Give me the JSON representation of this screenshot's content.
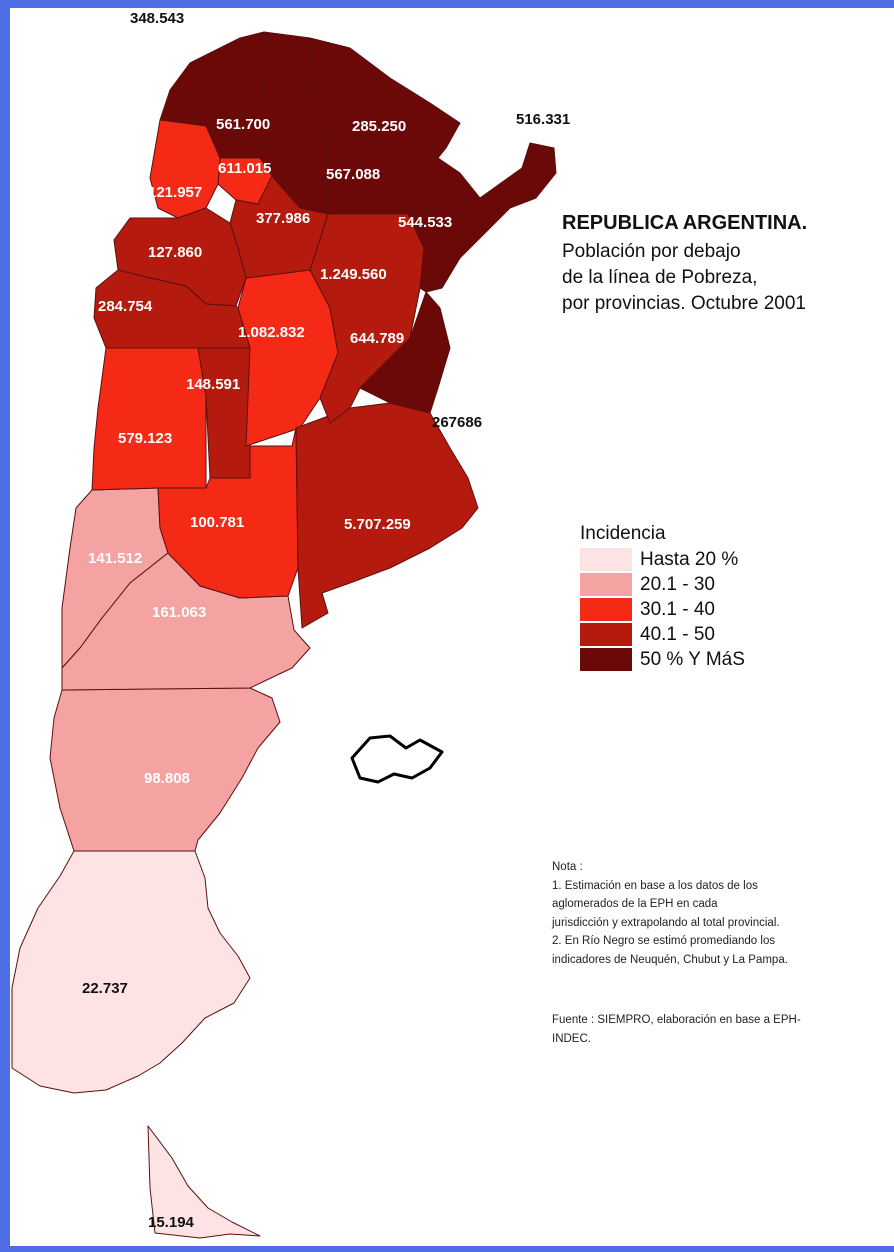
{
  "title": "REPUBLICA ARGENTINA.",
  "subtitle_lines": [
    "Población por debajo",
    "de la línea de Pobreza,",
    "por provincias. Octubre 2001"
  ],
  "legend": {
    "title": "Incidencia",
    "items": [
      {
        "label": "Hasta 20 %",
        "color": "#fde3e3"
      },
      {
        "label": "20.1 - 30",
        "color": "#f4a2a2"
      },
      {
        "label": "30.1 - 40",
        "color": "#f52a16"
      },
      {
        "label": "40.1 - 50",
        "color": "#b51a0e"
      },
      {
        "label": "50 % Y MáS",
        "color": "#6b0808"
      }
    ]
  },
  "labels": [
    "348.543",
    "561.700",
    "285.250",
    "516.331",
    "611.015",
    "567.088",
    "121.957",
    "377.986",
    "544.533",
    "127.860",
    "1.249.560",
    "284.754",
    "1.082.832",
    "644.789",
    "148.591",
    "267686",
    "579.123",
    "100.781",
    "5.707.259",
    "141.512",
    "161.063",
    "98.808",
    "22.737",
    "15.194"
  ],
  "note": {
    "heading": "Nota :",
    "lines": [
      "1. Estimación en base a los datos de los",
      "aglomerados de la EPH en cada",
      "jurisdicción y extrapolando al total provincial.",
      "2. En Río Negro se estimó promediando los",
      "indicadores de Neuquén, Chubut y La Pampa."
    ]
  },
  "source_lines": [
    "Fuente : SIEMPRO, elaboración en base a EPH-",
    "INDEC."
  ]
}
